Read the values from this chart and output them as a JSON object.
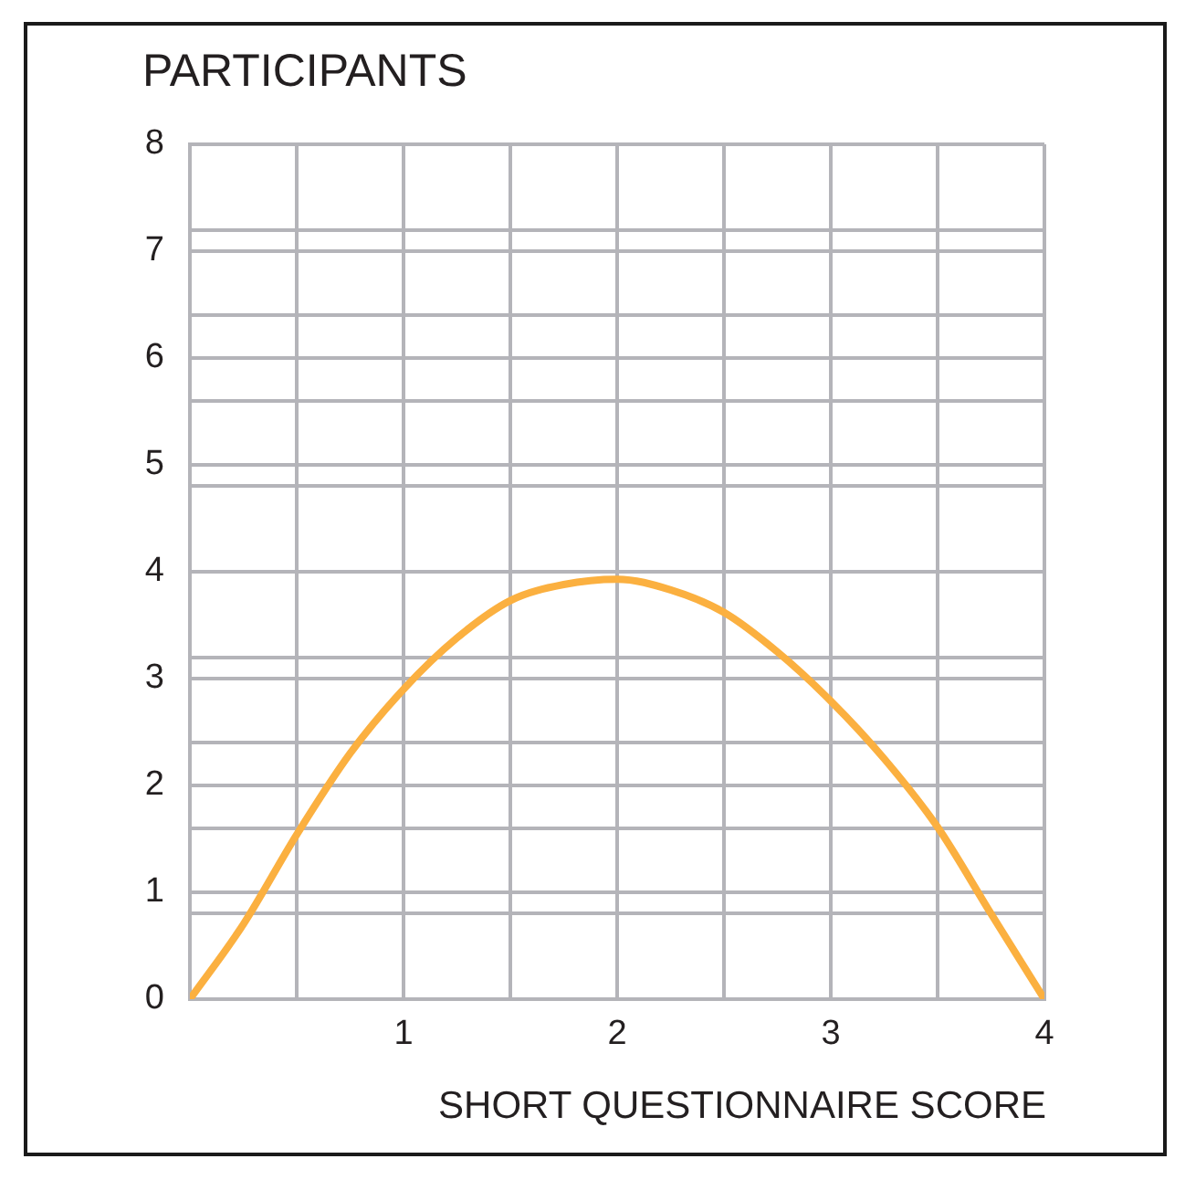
{
  "chart_data": {
    "type": "line",
    "ylabel": "PARTICIPANTS",
    "xlabel": "SHORT QUESTIONNAIRE SCORE",
    "x": [
      0,
      0.25,
      0.5,
      0.75,
      1,
      1.25,
      1.5,
      1.75,
      2,
      2.25,
      2.5,
      2.75,
      3,
      3.25,
      3.5,
      3.75,
      4
    ],
    "series": [
      {
        "color": "#fbb040",
        "values": [
          0,
          0.7,
          1.54,
          2.3,
          2.9,
          3.38,
          3.73,
          3.88,
          3.93,
          3.83,
          3.62,
          3.25,
          2.79,
          2.25,
          1.61,
          0.8,
          0
        ]
      }
    ],
    "xlim": [
      0,
      4
    ],
    "xticks": [
      {
        "value": 0,
        "label": null
      },
      {
        "value": 0.5,
        "label": null
      },
      1,
      {
        "value": 1.5,
        "label": null
      },
      2,
      {
        "value": 2.5,
        "label": null
      },
      3,
      {
        "value": 3.5,
        "label": null
      },
      4
    ],
    "ylim": [
      0,
      8
    ],
    "yticks": [
      0,
      {
        "value": 0.8,
        "label": null
      },
      1,
      {
        "value": 1.6,
        "label": null
      },
      2,
      {
        "value": 2.4,
        "label": null
      },
      3,
      {
        "value": 3.2,
        "label": null
      },
      4,
      {
        "value": 4.8,
        "label": null
      },
      5,
      {
        "value": 5.6,
        "label": null
      },
      6,
      {
        "value": 6.4,
        "label": null
      },
      7,
      {
        "value": 7.2,
        "label": null
      },
      8
    ],
    "grid": true,
    "marker": "none",
    "line_style": "solid"
  }
}
